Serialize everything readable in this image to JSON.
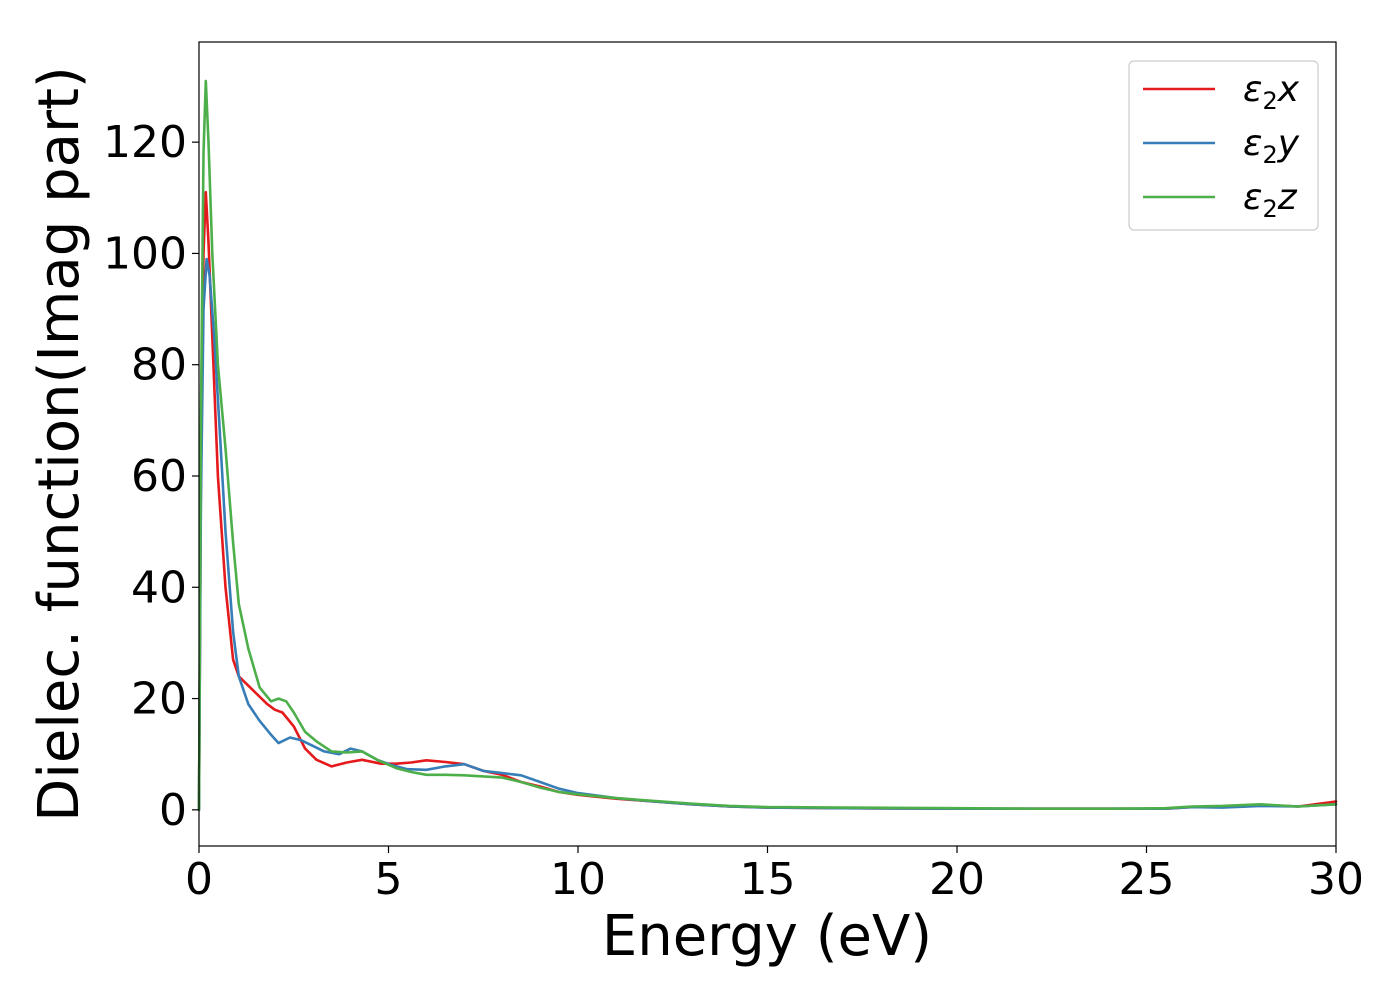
{
  "chart_data": {
    "type": "line",
    "xlabel": "Energy (eV)",
    "ylabel": "Dielec. function(Imag part)",
    "xlim": [
      0,
      30
    ],
    "ylim": [
      -6.5,
      138
    ],
    "xticks": [
      0,
      5,
      10,
      15,
      20,
      25,
      30
    ],
    "yticks": [
      0,
      20,
      40,
      60,
      80,
      100,
      120
    ],
    "grid": false,
    "legend_position": "top-right",
    "series": [
      {
        "name": "ε2x",
        "legend": {
          "base": "ε",
          "sub": "2",
          "suffix": "x"
        },
        "color": "#e41a1c",
        "x": [
          0,
          0.05,
          0.12,
          0.18,
          0.25,
          0.35,
          0.5,
          0.7,
          0.9,
          1.05,
          1.2,
          1.5,
          1.8,
          2.0,
          2.2,
          2.5,
          2.8,
          3.1,
          3.5,
          3.9,
          4.3,
          4.8,
          5.2,
          5.6,
          6.0,
          6.5,
          7.0,
          7.5,
          8.0,
          8.5,
          9.0,
          9.5,
          10.0,
          11.0,
          12.0,
          13.0,
          14.0,
          15.0,
          17.0,
          20.0,
          22.0,
          24.0,
          25.5,
          26.2,
          27.0,
          28.0,
          29.0,
          30.0
        ],
        "y": [
          0,
          60,
          100,
          111,
          102,
          85,
          60,
          40,
          27,
          24,
          23,
          21,
          19,
          18,
          17.5,
          15,
          11,
          9,
          7.8,
          8.5,
          9,
          8.3,
          8.3,
          8.5,
          8.9,
          8.6,
          8.2,
          7,
          6.3,
          5,
          4.2,
          3.2,
          2.7,
          2.0,
          1.5,
          1.0,
          0.6,
          0.4,
          0.3,
          0.2,
          0.2,
          0.2,
          0.2,
          0.5,
          0.5,
          0.9,
          0.6,
          1.5
        ]
      },
      {
        "name": "ε2y",
        "legend": {
          "base": "ε",
          "sub": "2",
          "suffix": "y"
        },
        "color": "#377eb8",
        "x": [
          0,
          0.05,
          0.12,
          0.2,
          0.28,
          0.4,
          0.55,
          0.7,
          0.9,
          1.05,
          1.3,
          1.6,
          1.9,
          2.1,
          2.4,
          2.7,
          3.0,
          3.3,
          3.7,
          4.0,
          4.3,
          4.7,
          5.1,
          5.5,
          6.0,
          6.5,
          7.0,
          7.5,
          8.0,
          8.5,
          9.0,
          9.5,
          10.0,
          11.0,
          12.0,
          13.0,
          14.0,
          15.0,
          17.0,
          20.0,
          22.0,
          24.0,
          25.5,
          26.2,
          27.0,
          28.0,
          29.0,
          30.0
        ],
        "y": [
          0,
          55,
          90,
          99,
          96,
          85,
          68,
          50,
          32,
          24,
          19,
          16,
          13.5,
          12,
          13,
          12.5,
          11.5,
          10.5,
          10,
          11,
          10.5,
          9,
          8,
          7.3,
          7.2,
          7.8,
          8.2,
          7,
          6.6,
          6.2,
          5,
          3.8,
          3.0,
          2.1,
          1.5,
          1.0,
          0.6,
          0.4,
          0.3,
          0.2,
          0.2,
          0.2,
          0.2,
          0.5,
          0.4,
          0.7,
          0.6,
          1.0
        ]
      },
      {
        "name": "ε2z",
        "legend": {
          "base": "ε",
          "sub": "2",
          "suffix": "z"
        },
        "color": "#4daf4a",
        "x": [
          0,
          0.05,
          0.12,
          0.18,
          0.25,
          0.35,
          0.5,
          0.7,
          0.9,
          1.05,
          1.3,
          1.6,
          1.9,
          2.1,
          2.3,
          2.5,
          2.8,
          3.1,
          3.5,
          3.9,
          4.3,
          4.7,
          5.2,
          5.6,
          6.0,
          6.5,
          7.0,
          7.5,
          8.0,
          8.5,
          9.0,
          9.5,
          10.0,
          11.0,
          12.0,
          13.0,
          14.0,
          15.0,
          17.0,
          20.0,
          22.0,
          24.0,
          25.5,
          26.2,
          27.0,
          28.0,
          29.0,
          30.0
        ],
        "y": [
          0,
          70,
          118,
          131,
          120,
          100,
          80,
          65,
          48,
          37,
          29,
          22,
          19.5,
          20,
          19.5,
          17.5,
          14,
          12.3,
          10.5,
          10.3,
          10.5,
          9,
          7.5,
          6.8,
          6.3,
          6.3,
          6.2,
          6.0,
          5.8,
          5.0,
          4.0,
          3.2,
          2.8,
          2.1,
          1.6,
          1.1,
          0.7,
          0.5,
          0.4,
          0.3,
          0.2,
          0.2,
          0.3,
          0.6,
          0.7,
          1.0,
          0.6,
          1.0
        ]
      }
    ]
  }
}
